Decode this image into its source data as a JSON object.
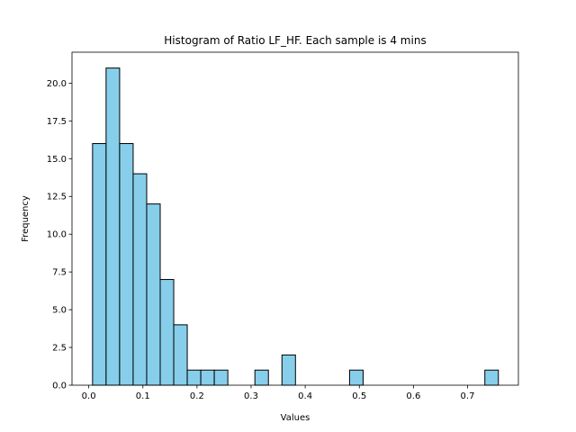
{
  "chart_data": {
    "type": "bar",
    "title": "Histogram of Ratio LF_HF. Each sample is 4 mins",
    "xlabel": "Values",
    "ylabel": "Frequency",
    "xlim": [
      -0.031,
      0.794
    ],
    "ylim": [
      0,
      22.05
    ],
    "xticks": [
      "0.0",
      "0.1",
      "0.2",
      "0.3",
      "0.4",
      "0.5",
      "0.6",
      "0.7"
    ],
    "yticks": [
      "0.0",
      "2.5",
      "5.0",
      "7.5",
      "10.0",
      "12.5",
      "15.0",
      "17.5",
      "20.0"
    ],
    "bins": [
      {
        "start": 0.007,
        "end": 0.032,
        "count": 16
      },
      {
        "start": 0.032,
        "end": 0.057,
        "count": 21
      },
      {
        "start": 0.057,
        "end": 0.082,
        "count": 16
      },
      {
        "start": 0.082,
        "end": 0.107,
        "count": 14
      },
      {
        "start": 0.107,
        "end": 0.132,
        "count": 12
      },
      {
        "start": 0.132,
        "end": 0.157,
        "count": 7
      },
      {
        "start": 0.157,
        "end": 0.182,
        "count": 4
      },
      {
        "start": 0.182,
        "end": 0.207,
        "count": 1
      },
      {
        "start": 0.207,
        "end": 0.232,
        "count": 1
      },
      {
        "start": 0.232,
        "end": 0.257,
        "count": 1
      },
      {
        "start": 0.257,
        "end": 0.282,
        "count": 0
      },
      {
        "start": 0.282,
        "end": 0.307,
        "count": 0
      },
      {
        "start": 0.307,
        "end": 0.332,
        "count": 1
      },
      {
        "start": 0.332,
        "end": 0.357,
        "count": 0
      },
      {
        "start": 0.357,
        "end": 0.382,
        "count": 2
      },
      {
        "start": 0.382,
        "end": 0.407,
        "count": 0
      },
      {
        "start": 0.407,
        "end": 0.432,
        "count": 0
      },
      {
        "start": 0.432,
        "end": 0.457,
        "count": 0
      },
      {
        "start": 0.457,
        "end": 0.482,
        "count": 0
      },
      {
        "start": 0.482,
        "end": 0.507,
        "count": 1
      },
      {
        "start": 0.507,
        "end": 0.532,
        "count": 0
      },
      {
        "start": 0.532,
        "end": 0.557,
        "count": 0
      },
      {
        "start": 0.557,
        "end": 0.582,
        "count": 0
      },
      {
        "start": 0.582,
        "end": 0.607,
        "count": 0
      },
      {
        "start": 0.607,
        "end": 0.632,
        "count": 0
      },
      {
        "start": 0.632,
        "end": 0.657,
        "count": 0
      },
      {
        "start": 0.657,
        "end": 0.682,
        "count": 0
      },
      {
        "start": 0.682,
        "end": 0.707,
        "count": 0
      },
      {
        "start": 0.707,
        "end": 0.732,
        "count": 0
      },
      {
        "start": 0.732,
        "end": 0.757,
        "count": 1
      }
    ],
    "bar_color": "#87ceeb",
    "edge_color": "#000000",
    "grid": false
  }
}
